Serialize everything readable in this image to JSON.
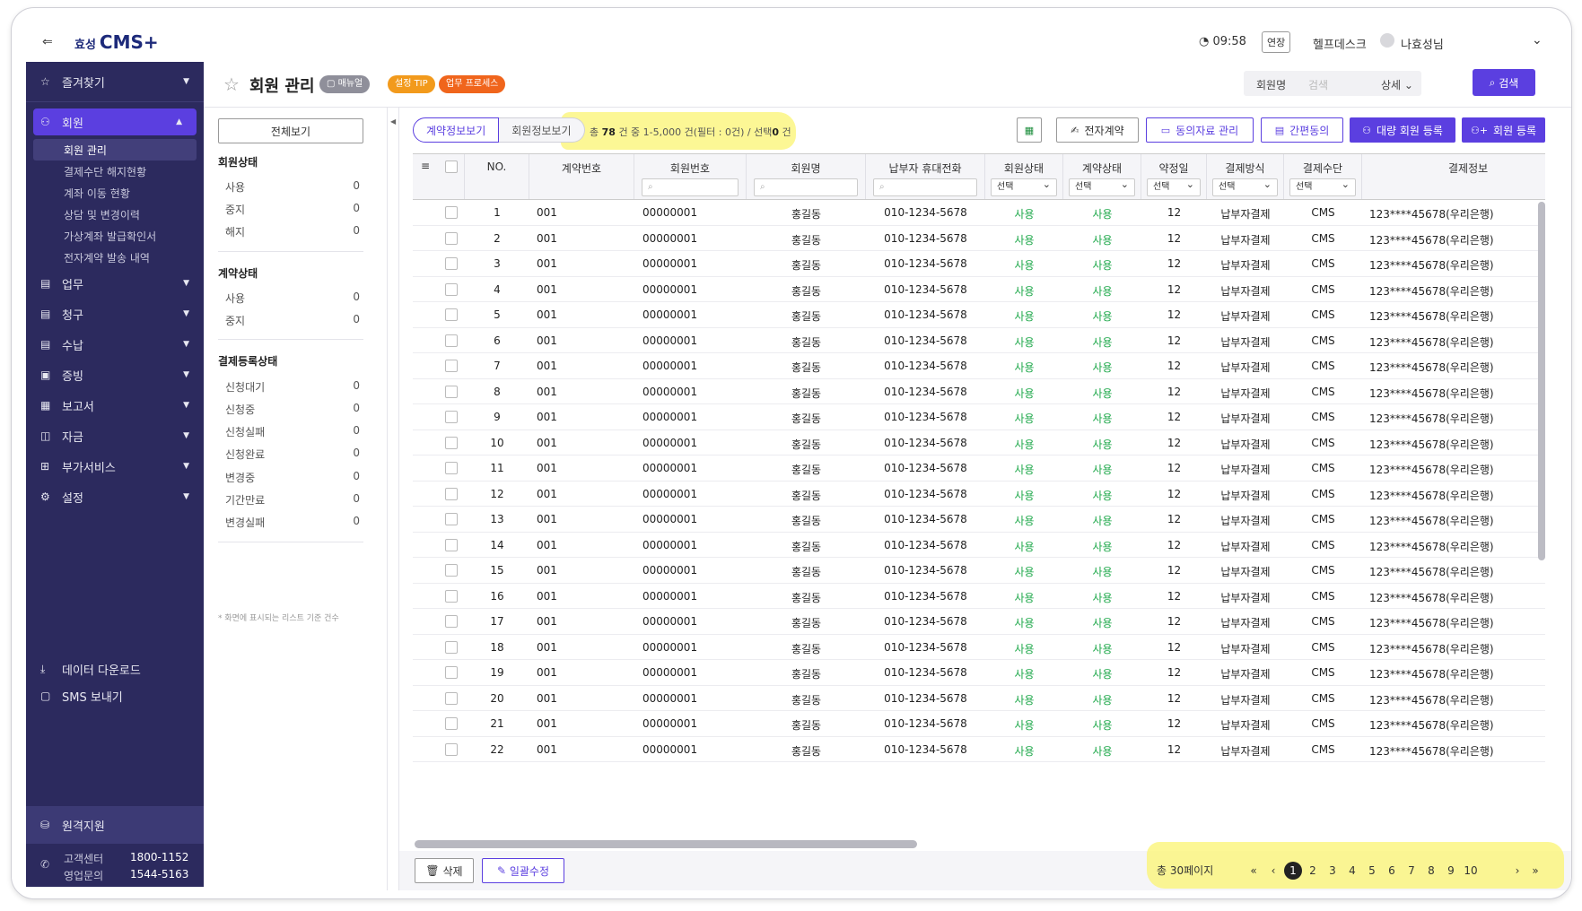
{
  "topbar": {
    "logo_prefix": "효성",
    "logo_main": "CMS+",
    "time": "09:58",
    "extend_label": "연장",
    "helpdesk_label": "헬프데스크",
    "user_name": "나효성님"
  },
  "sidebar": {
    "favorites": "즐겨찾기",
    "member": "회원",
    "sub_items": [
      "회원 관리",
      "결제수단 해지현황",
      "계좌 이동 현황",
      "상담 및 변경이력",
      "가상계좌 발급확인서",
      "전자계약 발송 내역"
    ],
    "menus": [
      "업무",
      "청구",
      "수납",
      "증빙",
      "보고서",
      "자금",
      "부가서비스",
      "설정"
    ],
    "download": "데이터 다운로드",
    "sms": "SMS 보내기",
    "remote": "원격지원",
    "contact": {
      "label1": "고객센터",
      "num1": "1800-1152",
      "label2": "영업문의",
      "num2": "1544-5163"
    }
  },
  "header": {
    "title": "회원 관리",
    "badge_manual": "매뉴얼",
    "badge_tip": "설정 TIP",
    "badge_process": "업무 프로세스",
    "search_field": "회원명",
    "search_placeholder": "검색",
    "search_detail": "상세",
    "search_button": "검색"
  },
  "filter_panel": {
    "all_button": "전체보기",
    "sections": [
      {
        "title": "회원상태",
        "rows": [
          {
            "label": "사용",
            "count": "0"
          },
          {
            "label": "중지",
            "count": "0"
          },
          {
            "label": "해지",
            "count": "0"
          }
        ]
      },
      {
        "title": "계약상태",
        "rows": [
          {
            "label": "사용",
            "count": "0"
          },
          {
            "label": "중지",
            "count": "0"
          }
        ]
      },
      {
        "title": "결제등록상태",
        "rows": [
          {
            "label": "신청대기",
            "count": "0"
          },
          {
            "label": "신청중",
            "count": "0"
          },
          {
            "label": "신청실패",
            "count": "0"
          },
          {
            "label": "신청완료",
            "count": "0"
          },
          {
            "label": "변경중",
            "count": "0"
          },
          {
            "label": "기간만료",
            "count": "0"
          },
          {
            "label": "변경실패",
            "count": "0"
          }
        ]
      }
    ],
    "note": "* 화면에 표시되는 리스트 기준 건수"
  },
  "toolbar": {
    "tab_contract": "계약정보보기",
    "tab_member": "회원정보보기",
    "count_prefix": "총",
    "count_total": "78",
    "count_suffix": "건 중 1-5,000 건(필터 : 0건) / 선택",
    "count_selected": "0",
    "count_end": "건",
    "excel_icon": "excel-icon",
    "btn_econtract": "전자계약",
    "btn_consent": "동의자료 관리",
    "btn_simple": "간편동의",
    "btn_bulk": "대량 회원 등록",
    "btn_register": "회원 등록"
  },
  "table": {
    "headers": [
      "NO.",
      "계약번호",
      "회원번호",
      "회원명",
      "납부자 휴대전화",
      "회원상태",
      "계약상태",
      "약정일",
      "결제방식",
      "결제수단",
      "결제정보"
    ],
    "select_placeholder": "선택",
    "rows": [
      {
        "no": "1",
        "contract": "001",
        "member_no": "00000001",
        "name": "홍길동",
        "phone": "010-1234-5678",
        "mstatus": "사용",
        "cstatus": "사용",
        "day": "12",
        "method": "납부자결제",
        "means": "CMS",
        "info": "123****45678(우리은행)"
      },
      {
        "no": "2",
        "contract": "001",
        "member_no": "00000001",
        "name": "홍길동",
        "phone": "010-1234-5678",
        "mstatus": "사용",
        "cstatus": "사용",
        "day": "12",
        "method": "납부자결제",
        "means": "CMS",
        "info": "123****45678(우리은행)"
      },
      {
        "no": "3",
        "contract": "001",
        "member_no": "00000001",
        "name": "홍길동",
        "phone": "010-1234-5678",
        "mstatus": "사용",
        "cstatus": "사용",
        "day": "12",
        "method": "납부자결제",
        "means": "CMS",
        "info": "123****45678(우리은행)"
      },
      {
        "no": "4",
        "contract": "001",
        "member_no": "00000001",
        "name": "홍길동",
        "phone": "010-1234-5678",
        "mstatus": "사용",
        "cstatus": "사용",
        "day": "12",
        "method": "납부자결제",
        "means": "CMS",
        "info": "123****45678(우리은행)"
      },
      {
        "no": "5",
        "contract": "001",
        "member_no": "00000001",
        "name": "홍길동",
        "phone": "010-1234-5678",
        "mstatus": "사용",
        "cstatus": "사용",
        "day": "12",
        "method": "납부자결제",
        "means": "CMS",
        "info": "123****45678(우리은행)"
      },
      {
        "no": "6",
        "contract": "001",
        "member_no": "00000001",
        "name": "홍길동",
        "phone": "010-1234-5678",
        "mstatus": "사용",
        "cstatus": "사용",
        "day": "12",
        "method": "납부자결제",
        "means": "CMS",
        "info": "123****45678(우리은행)"
      },
      {
        "no": "7",
        "contract": "001",
        "member_no": "00000001",
        "name": "홍길동",
        "phone": "010-1234-5678",
        "mstatus": "사용",
        "cstatus": "사용",
        "day": "12",
        "method": "납부자결제",
        "means": "CMS",
        "info": "123****45678(우리은행)"
      },
      {
        "no": "8",
        "contract": "001",
        "member_no": "00000001",
        "name": "홍길동",
        "phone": "010-1234-5678",
        "mstatus": "사용",
        "cstatus": "사용",
        "day": "12",
        "method": "납부자결제",
        "means": "CMS",
        "info": "123****45678(우리은행)"
      },
      {
        "no": "9",
        "contract": "001",
        "member_no": "00000001",
        "name": "홍길동",
        "phone": "010-1234-5678",
        "mstatus": "사용",
        "cstatus": "사용",
        "day": "12",
        "method": "납부자결제",
        "means": "CMS",
        "info": "123****45678(우리은행)"
      },
      {
        "no": "10",
        "contract": "001",
        "member_no": "00000001",
        "name": "홍길동",
        "phone": "010-1234-5678",
        "mstatus": "사용",
        "cstatus": "사용",
        "day": "12",
        "method": "납부자결제",
        "means": "CMS",
        "info": "123****45678(우리은행)"
      },
      {
        "no": "11",
        "contract": "001",
        "member_no": "00000001",
        "name": "홍길동",
        "phone": "010-1234-5678",
        "mstatus": "사용",
        "cstatus": "사용",
        "day": "12",
        "method": "납부자결제",
        "means": "CMS",
        "info": "123****45678(우리은행)"
      },
      {
        "no": "12",
        "contract": "001",
        "member_no": "00000001",
        "name": "홍길동",
        "phone": "010-1234-5678",
        "mstatus": "사용",
        "cstatus": "사용",
        "day": "12",
        "method": "납부자결제",
        "means": "CMS",
        "info": "123****45678(우리은행)"
      },
      {
        "no": "13",
        "contract": "001",
        "member_no": "00000001",
        "name": "홍길동",
        "phone": "010-1234-5678",
        "mstatus": "사용",
        "cstatus": "사용",
        "day": "12",
        "method": "납부자결제",
        "means": "CMS",
        "info": "123****45678(우리은행)"
      },
      {
        "no": "14",
        "contract": "001",
        "member_no": "00000001",
        "name": "홍길동",
        "phone": "010-1234-5678",
        "mstatus": "사용",
        "cstatus": "사용",
        "day": "12",
        "method": "납부자결제",
        "means": "CMS",
        "info": "123****45678(우리은행)"
      },
      {
        "no": "15",
        "contract": "001",
        "member_no": "00000001",
        "name": "홍길동",
        "phone": "010-1234-5678",
        "mstatus": "사용",
        "cstatus": "사용",
        "day": "12",
        "method": "납부자결제",
        "means": "CMS",
        "info": "123****45678(우리은행)"
      },
      {
        "no": "16",
        "contract": "001",
        "member_no": "00000001",
        "name": "홍길동",
        "phone": "010-1234-5678",
        "mstatus": "사용",
        "cstatus": "사용",
        "day": "12",
        "method": "납부자결제",
        "means": "CMS",
        "info": "123****45678(우리은행)"
      },
      {
        "no": "17",
        "contract": "001",
        "member_no": "00000001",
        "name": "홍길동",
        "phone": "010-1234-5678",
        "mstatus": "사용",
        "cstatus": "사용",
        "day": "12",
        "method": "납부자결제",
        "means": "CMS",
        "info": "123****45678(우리은행)"
      },
      {
        "no": "18",
        "contract": "001",
        "member_no": "00000001",
        "name": "홍길동",
        "phone": "010-1234-5678",
        "mstatus": "사용",
        "cstatus": "사용",
        "day": "12",
        "method": "납부자결제",
        "means": "CMS",
        "info": "123****45678(우리은행)"
      },
      {
        "no": "19",
        "contract": "001",
        "member_no": "00000001",
        "name": "홍길동",
        "phone": "010-1234-5678",
        "mstatus": "사용",
        "cstatus": "사용",
        "day": "12",
        "method": "납부자결제",
        "means": "CMS",
        "info": "123****45678(우리은행)"
      },
      {
        "no": "20",
        "contract": "001",
        "member_no": "00000001",
        "name": "홍길동",
        "phone": "010-1234-5678",
        "mstatus": "사용",
        "cstatus": "사용",
        "day": "12",
        "method": "납부자결제",
        "means": "CMS",
        "info": "123****45678(우리은행)"
      },
      {
        "no": "21",
        "contract": "001",
        "member_no": "00000001",
        "name": "홍길동",
        "phone": "010-1234-5678",
        "mstatus": "사용",
        "cstatus": "사용",
        "day": "12",
        "method": "납부자결제",
        "means": "CMS",
        "info": "123****45678(우리은행)"
      },
      {
        "no": "22",
        "contract": "001",
        "member_no": "00000001",
        "name": "홍길동",
        "phone": "010-1234-5678",
        "mstatus": "사용",
        "cstatus": "사용",
        "day": "12",
        "method": "납부자결제",
        "means": "CMS",
        "info": "123****45678(우리은행)"
      }
    ]
  },
  "bottom": {
    "delete_label": "삭제",
    "bulk_edit_label": "일괄수정",
    "total_pages": "총 30페이지",
    "pages": [
      "1",
      "2",
      "3",
      "4",
      "5",
      "6",
      "7",
      "8",
      "9",
      "10"
    ],
    "current_page": "1"
  },
  "colors": {
    "accent": "#5b3fe0",
    "sidebar": "#2c2a5e",
    "status_green": "#1ea84a",
    "highlight": "#fbf472"
  }
}
